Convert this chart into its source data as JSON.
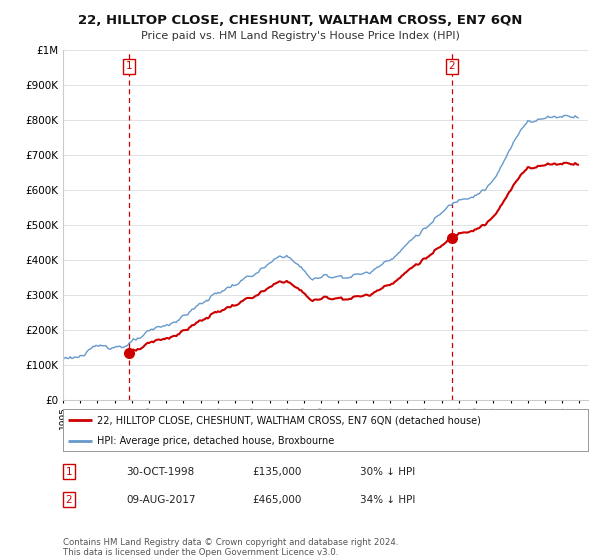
{
  "title": "22, HILLTOP CLOSE, CHESHUNT, WALTHAM CROSS, EN7 6QN",
  "subtitle": "Price paid vs. HM Land Registry's House Price Index (HPI)",
  "legend_line1": "22, HILLTOP CLOSE, CHESHUNT, WALTHAM CROSS, EN7 6QN (detached house)",
  "legend_line2": "HPI: Average price, detached house, Broxbourne",
  "sale1_date": "30-OCT-1998",
  "sale1_price": 135000,
  "sale1_pct": "30% ↓ HPI",
  "sale2_date": "09-AUG-2017",
  "sale2_price": 465000,
  "sale2_pct": "34% ↓ HPI",
  "footer": "Contains HM Land Registry data © Crown copyright and database right 2024.\nThis data is licensed under the Open Government Licence v3.0.",
  "hpi_color": "#6699cc",
  "price_color": "#cc0000",
  "vline_color": "#cc0000",
  "background_color": "#ffffff",
  "ylim_max": 1000000,
  "xlim_start": 1995.0,
  "xlim_end": 2025.5
}
